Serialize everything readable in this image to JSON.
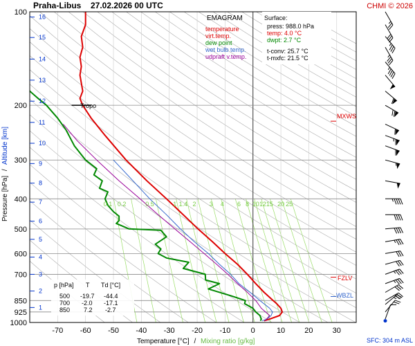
{
  "header": {
    "station": "Praha-Libus",
    "datetime": "27.02.2026 00 UTC",
    "credit": "CHMI © 2026"
  },
  "legend": {
    "title": "EMAGRAM",
    "items": [
      {
        "label": "temperature",
        "color": "#dd0000"
      },
      {
        "label": "virt.temp.",
        "color": "#dd0000"
      },
      {
        "label": "dew point",
        "color": "#008800"
      },
      {
        "label": "wet bulb temp.",
        "color": "#3366cc"
      },
      {
        "label": "udpraft v.temp.",
        "color": "#990099"
      }
    ]
  },
  "surface_box": {
    "title": "Surface:",
    "lines": [
      {
        "text": "press: 988.0 hPa",
        "color": "#000000"
      },
      {
        "text": "temp: 4.0 °C",
        "color": "#dd0000"
      },
      {
        "text": "dwpt: 2.7 °C",
        "color": "#008800"
      },
      {
        "text": "t-conv: 25.7 °C",
        "color": "#000000"
      },
      {
        "text": "t-mxfc: 21.5 °C",
        "color": "#000000"
      }
    ]
  },
  "level_table": {
    "headers": [
      "p [hPa]",
      "T",
      "Td [°C]"
    ],
    "rows": [
      [
        "500",
        "-19.7",
        "-44.4"
      ],
      [
        "700",
        "-2.0",
        "-17.1"
      ],
      [
        "850",
        "7.2",
        "-2.7"
      ]
    ]
  },
  "annotations": {
    "tropo": "Tropo",
    "mxws": "MXWS",
    "fzlv": "FZLV",
    "wbzl": "WBZL",
    "sfc": "SFC: 304 m ASL"
  },
  "axes": {
    "x_label_temp": "Temperature [°C]",
    "x_label_sep": "/",
    "x_label_mix": "Mixing ratio [g/kg]",
    "y_label_p": "Pressure [hPa]",
    "y_label_sep": "/",
    "y_label_alt": "Altitude [km]"
  },
  "colors": {
    "temperature": "#dd0000",
    "dew_point": "#008800",
    "wet_bulb": "#3366cc",
    "updraft": "#990099",
    "mixing_ratio": "#99dd66",
    "altitude": "#0033cc",
    "grid": "#888888",
    "dry_adiabat": "#aaaaaa"
  },
  "chart_data": {
    "type": "line",
    "title": "EMAGRAM",
    "xlabel": "Temperature [°C] / Mixing ratio [g/kg]",
    "ylabel": "Pressure [hPa] / Altitude [km]",
    "x_range": [
      -80,
      37
    ],
    "y_range_hpa": [
      1000,
      100
    ],
    "y_scale": "log",
    "x_ticks": [
      -70,
      -60,
      -50,
      -40,
      -30,
      -20,
      -10,
      0,
      10,
      20,
      30
    ],
    "y_ticks": [
      100,
      200,
      300,
      400,
      500,
      600,
      700,
      850,
      925,
      1000
    ],
    "altitude_ticks_km": [
      {
        "km": 1,
        "p": 895
      },
      {
        "km": 2,
        "p": 792
      },
      {
        "km": 3,
        "p": 700
      },
      {
        "km": 4,
        "p": 616
      },
      {
        "km": 5,
        "p": 540
      },
      {
        "km": 6,
        "p": 472
      },
      {
        "km": 7,
        "p": 410
      },
      {
        "km": 8,
        "p": 356
      },
      {
        "km": 9,
        "p": 308
      },
      {
        "km": 10,
        "p": 265
      },
      {
        "km": 11,
        "p": 227
      },
      {
        "km": 12,
        "p": 194
      },
      {
        "km": 13,
        "p": 166
      },
      {
        "km": 14,
        "p": 142
      },
      {
        "km": 15,
        "p": 121
      },
      {
        "km": 16,
        "p": 104
      }
    ],
    "mixing_ratio_lines": [
      {
        "label": "0.1",
        "t_at_label": -52
      },
      {
        "label": "0.2",
        "t_at_label": -47
      },
      {
        "label": "0.5",
        "t_at_label": -37
      },
      {
        "label": "1",
        "t_at_label": -28
      },
      {
        "label": "1.4",
        "t_at_label": -25
      },
      {
        "label": "2",
        "t_at_label": -21
      },
      {
        "label": "3",
        "t_at_label": -15
      },
      {
        "label": "4",
        "t_at_label": -11
      },
      {
        "label": "6",
        "t_at_label": -5
      },
      {
        "label": "8",
        "t_at_label": -2
      },
      {
        "label": "10",
        "t_at_label": 1
      },
      {
        "label": "12",
        "t_at_label": 3.5
      },
      {
        "label": "15",
        "t_at_label": 6
      },
      {
        "label": "20",
        "t_at_label": 10
      },
      {
        "label": "25",
        "t_at_label": 13
      }
    ],
    "series": [
      {
        "name": "temperature",
        "color": "#dd0000",
        "points": [
          [
            988,
            4.0
          ],
          [
            975,
            6
          ],
          [
            950,
            9.5
          ],
          [
            925,
            10.5
          ],
          [
            900,
            10
          ],
          [
            870,
            8.5
          ],
          [
            850,
            7.2
          ],
          [
            800,
            4
          ],
          [
            750,
            1
          ],
          [
            700,
            -2.0
          ],
          [
            650,
            -5.5
          ],
          [
            600,
            -10
          ],
          [
            550,
            -14.5
          ],
          [
            500,
            -19.7
          ],
          [
            450,
            -25
          ],
          [
            400,
            -31
          ],
          [
            350,
            -38
          ],
          [
            300,
            -45.5
          ],
          [
            250,
            -53
          ],
          [
            220,
            -58
          ],
          [
            200,
            -61
          ],
          [
            190,
            -62
          ],
          [
            180,
            -61
          ],
          [
            160,
            -62
          ],
          [
            150,
            -61.5
          ],
          [
            140,
            -62
          ],
          [
            130,
            -61
          ],
          [
            120,
            -61.5
          ],
          [
            110,
            -60
          ],
          [
            100,
            -60
          ]
        ]
      },
      {
        "name": "dew point",
        "color": "#008800",
        "points": [
          [
            988,
            2.7
          ],
          [
            975,
            3
          ],
          [
            950,
            2.5
          ],
          [
            925,
            1
          ],
          [
            900,
            0
          ],
          [
            870,
            -3
          ],
          [
            850,
            -2.7
          ],
          [
            820,
            -8
          ],
          [
            780,
            -16
          ],
          [
            750,
            -12
          ],
          [
            730,
            -17
          ],
          [
            700,
            -17.1
          ],
          [
            670,
            -25
          ],
          [
            640,
            -23
          ],
          [
            620,
            -31
          ],
          [
            600,
            -34
          ],
          [
            580,
            -33
          ],
          [
            560,
            -35
          ],
          [
            530,
            -31
          ],
          [
            505,
            -33
          ],
          [
            500,
            -44.4
          ],
          [
            480,
            -49
          ],
          [
            470,
            -48
          ],
          [
            455,
            -48
          ],
          [
            440,
            -50
          ],
          [
            420,
            -52
          ],
          [
            400,
            -53
          ],
          [
            380,
            -52
          ],
          [
            370,
            -55
          ],
          [
            350,
            -54
          ],
          [
            335,
            -57
          ],
          [
            320,
            -56
          ],
          [
            300,
            -60
          ],
          [
            270,
            -64
          ],
          [
            240,
            -67
          ],
          [
            220,
            -70
          ],
          [
            200,
            -74
          ],
          [
            190,
            -77
          ],
          [
            180,
            -80
          ],
          [
            170,
            -81
          ],
          [
            160,
            -83
          ],
          [
            150,
            -84
          ]
        ]
      },
      {
        "name": "wet bulb temp.",
        "color": "#3366cc",
        "points": [
          [
            988,
            3.3
          ],
          [
            975,
            5
          ],
          [
            950,
            6.5
          ],
          [
            925,
            7
          ],
          [
            900,
            6
          ],
          [
            850,
            2.5
          ],
          [
            800,
            -1
          ],
          [
            750,
            -5
          ],
          [
            700,
            -8
          ],
          [
            650,
            -12
          ],
          [
            600,
            -16
          ],
          [
            550,
            -21
          ],
          [
            500,
            -26
          ],
          [
            450,
            -31
          ],
          [
            400,
            -37
          ],
          [
            350,
            -43
          ],
          [
            300,
            -50
          ]
        ]
      },
      {
        "name": "udpraft v.temp.",
        "color": "#990099",
        "points": [
          [
            988,
            4.3
          ],
          [
            950,
            6
          ],
          [
            900,
            3
          ],
          [
            850,
            1
          ],
          [
            800,
            -2
          ],
          [
            750,
            -5.5
          ],
          [
            700,
            -9
          ],
          [
            650,
            -13
          ],
          [
            600,
            -17.5
          ],
          [
            550,
            -22.5
          ],
          [
            500,
            -28
          ],
          [
            450,
            -34
          ],
          [
            400,
            -40.5
          ],
          [
            350,
            -48
          ],
          [
            300,
            -56
          ],
          [
            260,
            -63
          ],
          [
            230,
            -68
          ]
        ]
      }
    ],
    "wind_barbs": [
      {
        "p": 975,
        "dir": 200,
        "spd": 10
      },
      {
        "p": 925,
        "dir": 220,
        "spd": 20
      },
      {
        "p": 875,
        "dir": 230,
        "spd": 25
      },
      {
        "p": 850,
        "dir": 240,
        "spd": 30
      },
      {
        "p": 800,
        "dir": 240,
        "spd": 30
      },
      {
        "p": 750,
        "dir": 250,
        "spd": 35
      },
      {
        "p": 700,
        "dir": 250,
        "spd": 35
      },
      {
        "p": 650,
        "dir": 255,
        "spd": 30
      },
      {
        "p": 600,
        "dir": 260,
        "spd": 30
      },
      {
        "p": 550,
        "dir": 260,
        "spd": 35
      },
      {
        "p": 500,
        "dir": 265,
        "spd": 40
      },
      {
        "p": 450,
        "dir": 270,
        "spd": 40
      },
      {
        "p": 400,
        "dir": 270,
        "spd": 45
      },
      {
        "p": 350,
        "dir": 280,
        "spd": 50
      },
      {
        "p": 300,
        "dir": 285,
        "spd": 55
      },
      {
        "p": 270,
        "dir": 290,
        "spd": 60
      },
      {
        "p": 250,
        "dir": 290,
        "spd": 65
      },
      {
        "p": 230,
        "dir": 295,
        "spd": 60
      },
      {
        "p": 200,
        "dir": 300,
        "spd": 70
      },
      {
        "p": 180,
        "dir": 310,
        "spd": 60
      },
      {
        "p": 160,
        "dir": 320,
        "spd": 50
      },
      {
        "p": 145,
        "dir": 320,
        "spd": 45
      },
      {
        "p": 130,
        "dir": 330,
        "spd": 35
      },
      {
        "p": 120,
        "dir": 320,
        "spd": 35
      },
      {
        "p": 110,
        "dir": 330,
        "spd": 30
      },
      {
        "p": 100,
        "dir": 330,
        "spd": 25
      }
    ],
    "markers": {
      "tropopause_hpa": 200,
      "mxws_hpa": 225,
      "fzlv_hpa": 715,
      "wbzl_hpa": 825
    }
  }
}
